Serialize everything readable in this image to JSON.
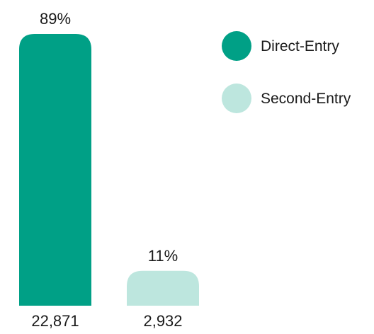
{
  "chart_data": {
    "type": "bar",
    "categories": [
      "Direct-Entry",
      "Second-Entry"
    ],
    "values": [
      22871,
      2932
    ],
    "value_labels": [
      "22,871",
      "2,932"
    ],
    "percent_labels": [
      "89%",
      "11%"
    ],
    "percent_values": [
      89,
      11
    ],
    "colors": [
      "#00A086",
      "#BDE6DE"
    ],
    "legend": [
      {
        "name": "Direct-Entry",
        "color": "#00A086"
      },
      {
        "name": "Second-Entry",
        "color": "#BDE6DE"
      }
    ],
    "legend_position": "top-right",
    "grid": false,
    "title": "",
    "xlabel": "",
    "ylabel": ""
  }
}
